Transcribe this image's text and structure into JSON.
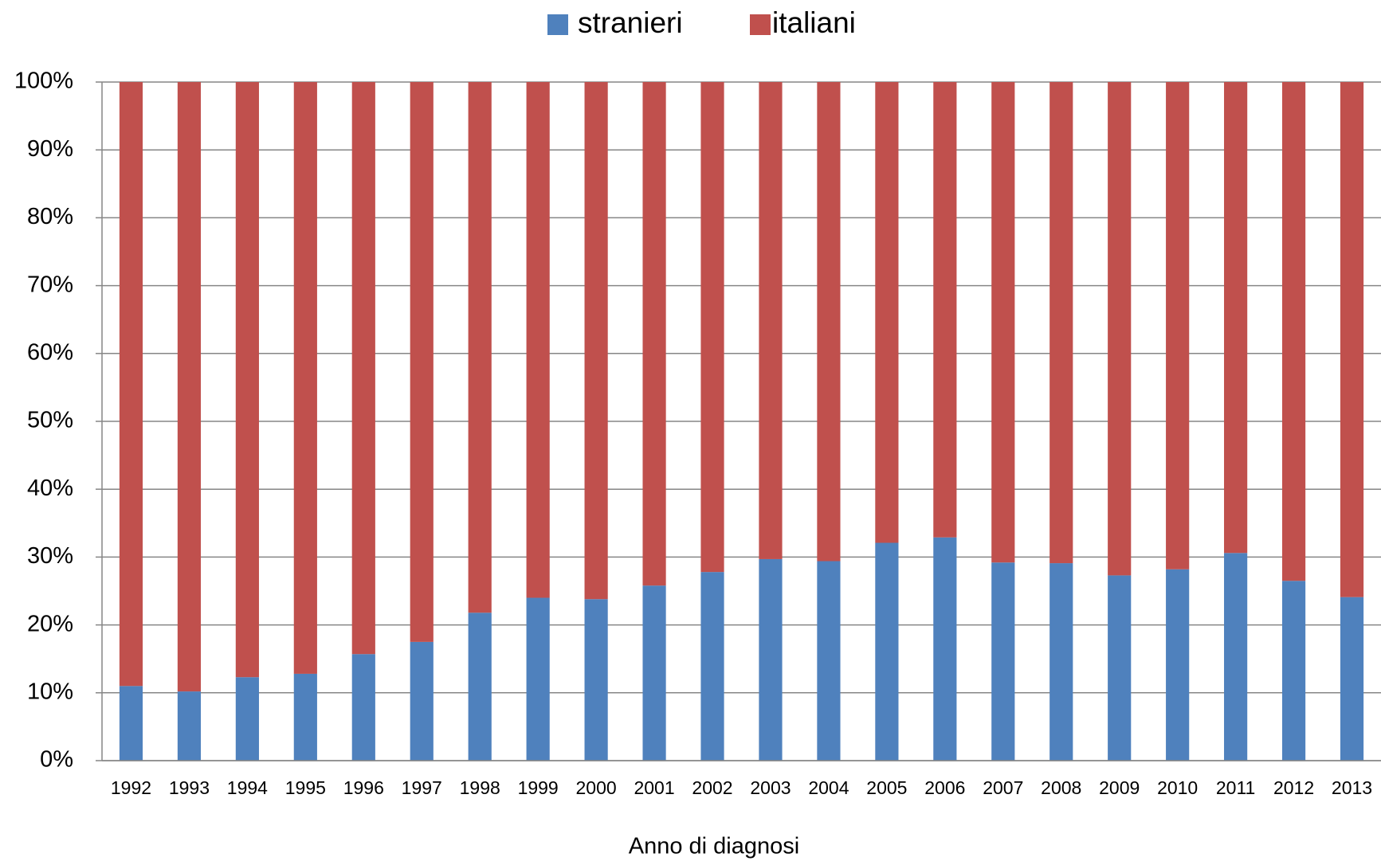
{
  "chart_data": {
    "type": "stacked_bar",
    "x_label": "Anno di diagnosi",
    "categories": [
      "1992",
      "1993",
      "1994",
      "1995",
      "1996",
      "1997",
      "1998",
      "1999",
      "2000",
      "2001",
      "2002",
      "2003",
      "2004",
      "2005",
      "2006",
      "2007",
      "2008",
      "2009",
      "2010",
      "2011",
      "2012",
      "2013"
    ],
    "series": [
      {
        "name": "stranieri",
        "color": "#4f81bd",
        "values": [
          11,
          10.2,
          12.3,
          12.8,
          15.7,
          17.5,
          21.8,
          24,
          23.8,
          25.8,
          27.8,
          29.7,
          29.4,
          32.1,
          32.9,
          29.2,
          29.1,
          27.3,
          28.2,
          30.6,
          26.5,
          24.1
        ]
      },
      {
        "name": "italiani",
        "color": "#c0504d",
        "values": [
          89,
          89.8,
          87.7,
          87.2,
          84.3,
          82.5,
          78.2,
          76,
          76.2,
          74.2,
          72.2,
          70.3,
          70.6,
          67.9,
          67.1,
          70.8,
          70.9,
          72.7,
          71.8,
          69.4,
          73.5,
          75.9
        ]
      }
    ],
    "ylim": [
      0,
      100
    ],
    "yticks": [
      {
        "value": 0,
        "label": "0%"
      },
      {
        "value": 10,
        "label": "10%"
      },
      {
        "value": 20,
        "label": "20%"
      },
      {
        "value": 30,
        "label": "30%"
      },
      {
        "value": 40,
        "label": "40%"
      },
      {
        "value": 50,
        "label": "50%"
      },
      {
        "value": 60,
        "label": "60%"
      },
      {
        "value": 70,
        "label": "70%"
      },
      {
        "value": 80,
        "label": "80%"
      },
      {
        "value": 90,
        "label": "90%"
      },
      {
        "value": 100,
        "label": "100%"
      }
    ],
    "grid": true,
    "legend": "top"
  }
}
